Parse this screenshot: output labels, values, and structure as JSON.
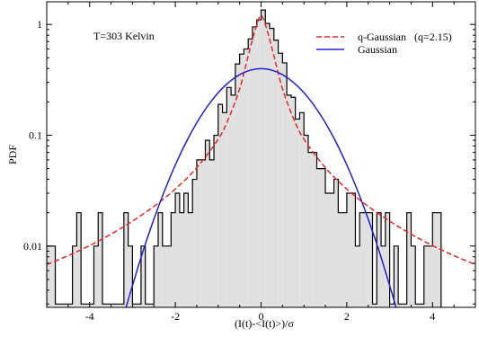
{
  "chart_data": {
    "type": "line",
    "annotation": "T=303 Kelvin",
    "xlabel": "(I(t)-<I(t)>)/σ",
    "ylabel": "PDF",
    "xlim": [
      -5.0,
      5.0
    ],
    "ylim": [
      0.0028,
      1.6
    ],
    "yscale": "log",
    "grid": false,
    "legend_position": "top-right",
    "xticks": [
      -4,
      -2,
      0,
      2,
      4
    ],
    "xtick_labels": [
      "-4",
      "-2",
      "0",
      "2",
      "4"
    ],
    "yticks": [
      0.01,
      0.1,
      1
    ],
    "ytick_labels": [
      "0.01",
      "0.1",
      "1"
    ],
    "histogram": {
      "name": "",
      "bin_edges": [
        -5.0,
        -4.9,
        -4.8,
        -4.7,
        -4.6,
        -4.5,
        -4.4,
        -4.3,
        -4.2,
        -4.1,
        -4.0,
        -3.9,
        -3.8,
        -3.7,
        -3.6,
        -3.5,
        -3.4,
        -3.3,
        -3.2,
        -3.1,
        -3.0,
        -2.9,
        -2.8,
        -2.7,
        -2.6,
        -2.5,
        -2.4,
        -2.3,
        -2.2,
        -2.1,
        -2.0,
        -1.9,
        -1.8,
        -1.7,
        -1.6,
        -1.5,
        -1.4,
        -1.3,
        -1.2,
        -1.1,
        -1.0,
        -0.9,
        -0.8,
        -0.7,
        -0.6,
        -0.5,
        -0.4,
        -0.3,
        -0.2,
        -0.1,
        0.0,
        0.1,
        0.2,
        0.3,
        0.4,
        0.5,
        0.6,
        0.7,
        0.8,
        0.9,
        1.0,
        1.1,
        1.2,
        1.3,
        1.4,
        1.5,
        1.6,
        1.7,
        1.8,
        1.9,
        2.0,
        2.1,
        2.2,
        2.3,
        2.4,
        2.5,
        2.6,
        2.7,
        2.8,
        2.9,
        3.0,
        3.1,
        3.2,
        3.3,
        3.4,
        3.5,
        3.6,
        3.7,
        3.8,
        3.9,
        4.0,
        4.1,
        4.2
      ],
      "values": [
        0.01,
        0.01,
        0.003,
        0.003,
        0.003,
        0.003,
        0.01,
        0.02,
        0.003,
        0.003,
        0.003,
        0.01,
        0.02,
        0.003,
        0.003,
        0.003,
        0.003,
        0.003,
        0.02,
        0.01,
        0.003,
        0.003,
        0.01,
        0.003,
        0.003,
        0.01,
        0.02,
        0.01,
        0.01,
        0.02,
        0.03,
        0.02,
        0.03,
        0.02,
        0.04,
        0.06,
        0.06,
        0.09,
        0.06,
        0.1,
        0.19,
        0.16,
        0.27,
        0.23,
        0.44,
        0.54,
        0.6,
        0.74,
        0.95,
        1.1,
        1.35,
        1.02,
        0.92,
        0.72,
        0.55,
        0.45,
        0.23,
        0.22,
        0.14,
        0.16,
        0.1,
        0.07,
        0.07,
        0.05,
        0.05,
        0.03,
        0.03,
        0.04,
        0.02,
        0.02,
        0.03,
        0.03,
        0.01,
        0.02,
        0.02,
        0.02,
        0.003,
        0.02,
        0.01,
        0.02,
        0.003,
        0.01,
        0.003,
        0.003,
        0.02,
        0.01,
        0.003,
        0.003,
        0.01,
        0.01,
        0.02,
        0.02
      ],
      "color": "#e0e0e0",
      "edge_color": "#000000"
    },
    "series": [
      {
        "name": "q-Gaussian   (q=2.15)",
        "style": "dashed",
        "color": "#e8262a",
        "x": [
          -5.0,
          -4.5,
          -4.0,
          -3.5,
          -3.0,
          -2.5,
          -2.0,
          -1.5,
          -1.0,
          -0.75,
          -0.5,
          -0.3,
          -0.15,
          0.0,
          0.15,
          0.3,
          0.5,
          0.75,
          1.0,
          1.5,
          2.0,
          2.5,
          3.0,
          3.5,
          4.0,
          4.5,
          5.0
        ],
        "y": [
          0.0068,
          0.0082,
          0.0101,
          0.0128,
          0.0168,
          0.0228,
          0.0327,
          0.051,
          0.092,
          0.144,
          0.262,
          0.52,
          0.86,
          1.2,
          0.86,
          0.52,
          0.262,
          0.144,
          0.092,
          0.051,
          0.0327,
          0.0228,
          0.0168,
          0.0128,
          0.0101,
          0.0082,
          0.0068
        ]
      },
      {
        "name": "Gaussian",
        "style": "solid",
        "color": "#1f1fd0",
        "x": [
          -3.2,
          -3.0,
          -2.75,
          -2.5,
          -2.25,
          -2.0,
          -1.75,
          -1.5,
          -1.25,
          -1.0,
          -0.75,
          -0.5,
          -0.25,
          0.0,
          0.25,
          0.5,
          0.75,
          1.0,
          1.25,
          1.5,
          1.75,
          2.0,
          2.25,
          2.5,
          2.75,
          3.0,
          3.2
        ],
        "y": [
          0.0024,
          0.0044,
          0.0091,
          0.0175,
          0.0317,
          0.054,
          0.0863,
          0.1295,
          0.1826,
          0.242,
          0.3011,
          0.3521,
          0.3867,
          0.3989,
          0.3867,
          0.3521,
          0.3011,
          0.242,
          0.1826,
          0.1295,
          0.0863,
          0.054,
          0.0317,
          0.0175,
          0.0091,
          0.0044,
          0.0024
        ]
      }
    ]
  }
}
